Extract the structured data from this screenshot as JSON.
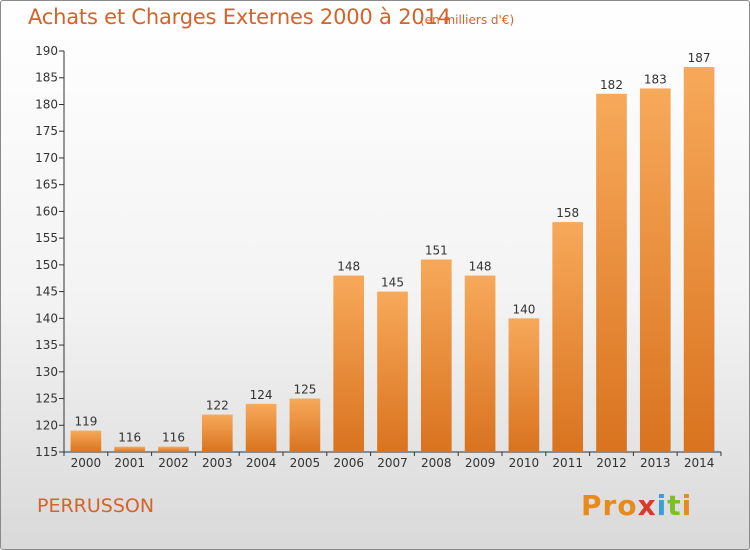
{
  "chart_data": {
    "type": "bar",
    "title": "Achats et Charges Externes 2000 à 2014",
    "subtitle": "(en milliers d'€)",
    "categories": [
      "2000",
      "2001",
      "2002",
      "2003",
      "2004",
      "2005",
      "2006",
      "2007",
      "2008",
      "2009",
      "2010",
      "2011",
      "2012",
      "2013",
      "2014"
    ],
    "values": [
      119,
      116,
      116,
      122,
      124,
      125,
      148,
      145,
      151,
      148,
      140,
      158,
      182,
      183,
      187
    ],
    "ylim": [
      115,
      190
    ],
    "yticks": [
      115,
      120,
      125,
      130,
      135,
      140,
      145,
      150,
      155,
      160,
      165,
      170,
      175,
      180,
      185,
      190
    ],
    "grid": false,
    "legend": "none",
    "colors": {
      "bar_light": "#f7a95a",
      "bar_dark": "#d9731f",
      "text": "#d5622a",
      "axis": "#333333"
    }
  },
  "footer": {
    "place_label": "PERRUSSON",
    "logo_text": "Proxiti",
    "logo_colors": [
      "#e98a1c",
      "#e98a1c",
      "#e98a1c",
      "#d83a2a",
      "#3aa0d8",
      "#7bbf2a",
      "#e98a1c"
    ]
  }
}
